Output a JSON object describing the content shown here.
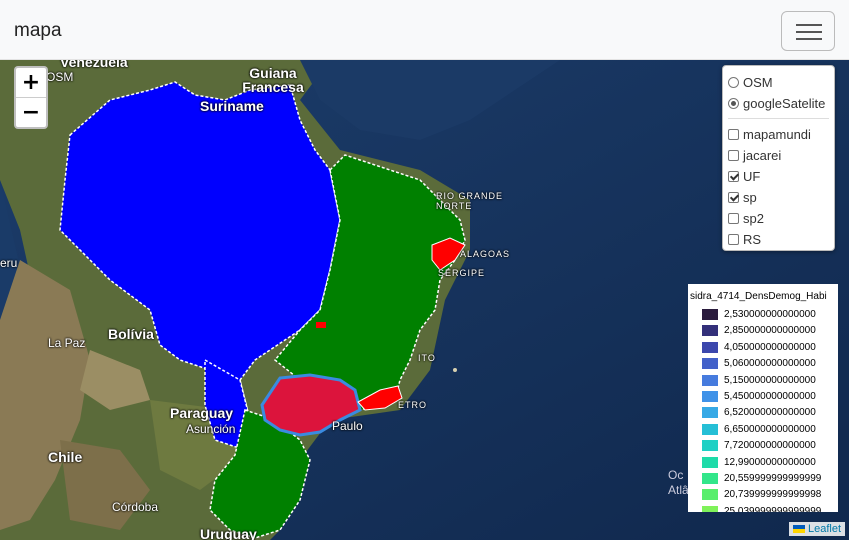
{
  "navbar": {
    "brand": "mapa"
  },
  "map": {
    "zoom_in": "+",
    "zoom_out": "−",
    "base_layers": [
      {
        "label": "OSM",
        "selected": false
      },
      {
        "label": "googleSatelite",
        "selected": true
      }
    ],
    "overlays": [
      {
        "label": "mapamundi",
        "checked": false
      },
      {
        "label": "jacarei",
        "checked": false
      },
      {
        "label": "UF",
        "checked": true
      },
      {
        "label": "sp",
        "checked": true
      },
      {
        "label": "sp2",
        "checked": false
      },
      {
        "label": "RS",
        "checked": false
      }
    ],
    "legend": {
      "title": "sidra_4714_DensDemog_Habi",
      "items": [
        {
          "label": "2,530000000000000",
          "color": "#2a1b3d"
        },
        {
          "label": "2,850000000000000",
          "color": "#33307a"
        },
        {
          "label": "4,050000000000000",
          "color": "#3b47ad"
        },
        {
          "label": "5,060000000000000",
          "color": "#4361c9"
        },
        {
          "label": "5,150000000000000",
          "color": "#467bde"
        },
        {
          "label": "5,450000000000000",
          "color": "#3f92e8"
        },
        {
          "label": "6,520000000000000",
          "color": "#36a9e6"
        },
        {
          "label": "6,650000000000000",
          "color": "#25bfd6"
        },
        {
          "label": "7,720000000000000",
          "color": "#1fd0c4"
        },
        {
          "label": "12,99000000000000",
          "color": "#1edba9"
        },
        {
          "label": "20,559999999999999",
          "color": "#32e68a"
        },
        {
          "label": "20,739999999999998",
          "color": "#58ee6c"
        },
        {
          "label": "25,039999999999999",
          "color": "#7ff25a"
        }
      ]
    },
    "place_labels": [
      {
        "text": "Venezuela"
      },
      {
        "text": "Guiana Francesa"
      },
      {
        "text": "Suriname"
      },
      {
        "text": "OSM"
      },
      {
        "text": "Bolívia"
      },
      {
        "text": "La Paz"
      },
      {
        "text": "Paraguay"
      },
      {
        "text": "Asunción"
      },
      {
        "text": "Chile"
      },
      {
        "text": "Córdoba"
      },
      {
        "text": "Uruguay"
      },
      {
        "text": "Paulo"
      },
      {
        "text": "RIO GRANDE NORTE"
      },
      {
        "text": "ALAGOAS"
      },
      {
        "text": "SERGIPE"
      },
      {
        "text": "ITO"
      },
      {
        "text": "ETRO"
      },
      {
        "text": "Oc Atlân"
      },
      {
        "text": "eru"
      }
    ],
    "attribution": "Leaflet"
  }
}
